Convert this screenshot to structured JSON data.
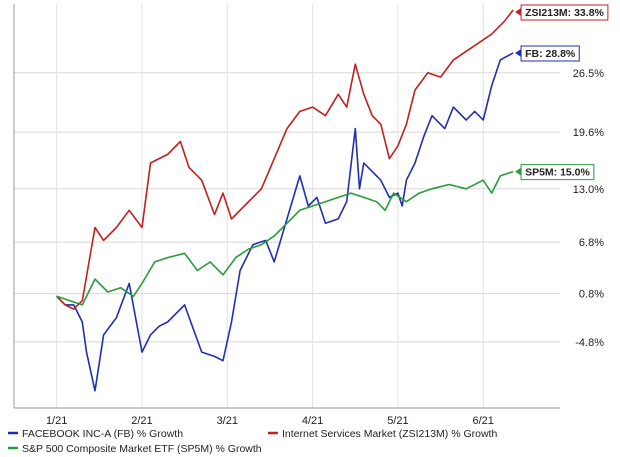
{
  "chart_data": {
    "type": "line",
    "title": "",
    "xlabel": "",
    "ylabel": "",
    "x_ticks": [
      "1/21",
      "2/21",
      "3/21",
      "4/21",
      "5/21",
      "6/21"
    ],
    "y_ticks": [
      "26.5%",
      "19.6%",
      "13.0%",
      "6.8%",
      "0.8%",
      "-4.8%"
    ],
    "y_tick_values": [
      26.5,
      19.6,
      13.0,
      6.8,
      0.8,
      -4.8
    ],
    "ylim": [
      -12.5,
      34.5
    ],
    "grid": true,
    "legend_position": "bottom",
    "series": [
      {
        "name": "FACEBOOK INC-A (FB) % Growth",
        "callout": "FB: 28.8%",
        "color": "#1f2fb0",
        "x": [
          0,
          0.1,
          0.2,
          0.3,
          0.35,
          0.45,
          0.55,
          0.7,
          0.85,
          1.0,
          1.1,
          1.2,
          1.3,
          1.5,
          1.7,
          1.85,
          1.95,
          2.05,
          2.15,
          2.3,
          2.45,
          2.55,
          2.7,
          2.85,
          2.95,
          3.05,
          3.15,
          3.3,
          3.4,
          3.5,
          3.55,
          3.6,
          3.7,
          3.8,
          3.9,
          4.0,
          4.05,
          4.1,
          4.2,
          4.3,
          4.4,
          4.55,
          4.65,
          4.8,
          4.9,
          5.0,
          5.1,
          5.2,
          5.35
        ],
        "y": [
          0.5,
          -0.5,
          -0.5,
          -2.5,
          -6.0,
          -10.5,
          -4.0,
          -2.0,
          2.0,
          -6.0,
          -4.0,
          -3.0,
          -2.5,
          -0.5,
          -6.0,
          -6.5,
          -7.0,
          -2.5,
          3.5,
          6.5,
          7.0,
          4.5,
          9.5,
          14.5,
          11.0,
          12.0,
          9.0,
          9.5,
          11.5,
          20.0,
          13.0,
          16.0,
          15.0,
          14.0,
          12.0,
          12.5,
          11.0,
          14.0,
          16.0,
          19.0,
          21.5,
          20.0,
          22.5,
          21.0,
          22.0,
          21.0,
          25.0,
          28.0,
          28.8
        ]
      },
      {
        "name": "Internet Services Market (ZSI213M) % Growth",
        "callout": "ZSI213M: 33.8%",
        "color": "#c02020",
        "x": [
          0,
          0.1,
          0.2,
          0.3,
          0.45,
          0.55,
          0.7,
          0.85,
          1.0,
          1.1,
          1.3,
          1.45,
          1.55,
          1.7,
          1.85,
          1.95,
          2.05,
          2.2,
          2.4,
          2.55,
          2.7,
          2.85,
          3.0,
          3.15,
          3.3,
          3.4,
          3.5,
          3.6,
          3.7,
          3.8,
          3.9,
          4.0,
          4.1,
          4.2,
          4.35,
          4.5,
          4.65,
          4.8,
          4.95,
          5.1,
          5.25,
          5.35
        ],
        "y": [
          0.5,
          -0.5,
          -1.0,
          0.0,
          8.5,
          7.0,
          8.5,
          10.5,
          8.5,
          16.0,
          17.0,
          18.5,
          15.5,
          14.0,
          10.0,
          12.5,
          9.5,
          11.0,
          13.0,
          16.5,
          20.0,
          22.0,
          22.5,
          21.5,
          24.0,
          22.5,
          27.5,
          24.0,
          21.5,
          20.5,
          16.5,
          18.0,
          20.5,
          24.5,
          26.5,
          26.0,
          28.0,
          29.0,
          30.0,
          31.0,
          32.5,
          33.8
        ]
      },
      {
        "name": "S&P 500 Composite Market ETF (SP5M) % Growth",
        "callout": "SP5M: 15.0%",
        "color": "#2a9a3a",
        "x": [
          0,
          0.15,
          0.3,
          0.45,
          0.6,
          0.75,
          0.9,
          1.0,
          1.15,
          1.3,
          1.5,
          1.65,
          1.8,
          1.95,
          2.1,
          2.25,
          2.4,
          2.55,
          2.7,
          2.85,
          3.0,
          3.15,
          3.3,
          3.45,
          3.6,
          3.75,
          3.85,
          3.95,
          4.1,
          4.25,
          4.4,
          4.6,
          4.8,
          5.0,
          5.1,
          5.2,
          5.35
        ],
        "y": [
          0.5,
          0.0,
          -0.5,
          2.5,
          1.0,
          1.5,
          0.5,
          2.0,
          4.5,
          5.0,
          5.5,
          3.5,
          4.5,
          3.0,
          5.0,
          6.0,
          6.5,
          7.5,
          9.0,
          10.5,
          11.0,
          11.5,
          12.0,
          12.5,
          12.0,
          11.5,
          10.5,
          12.5,
          11.5,
          12.5,
          13.0,
          13.5,
          13.0,
          14.0,
          12.5,
          14.5,
          15.0
        ]
      }
    ]
  }
}
